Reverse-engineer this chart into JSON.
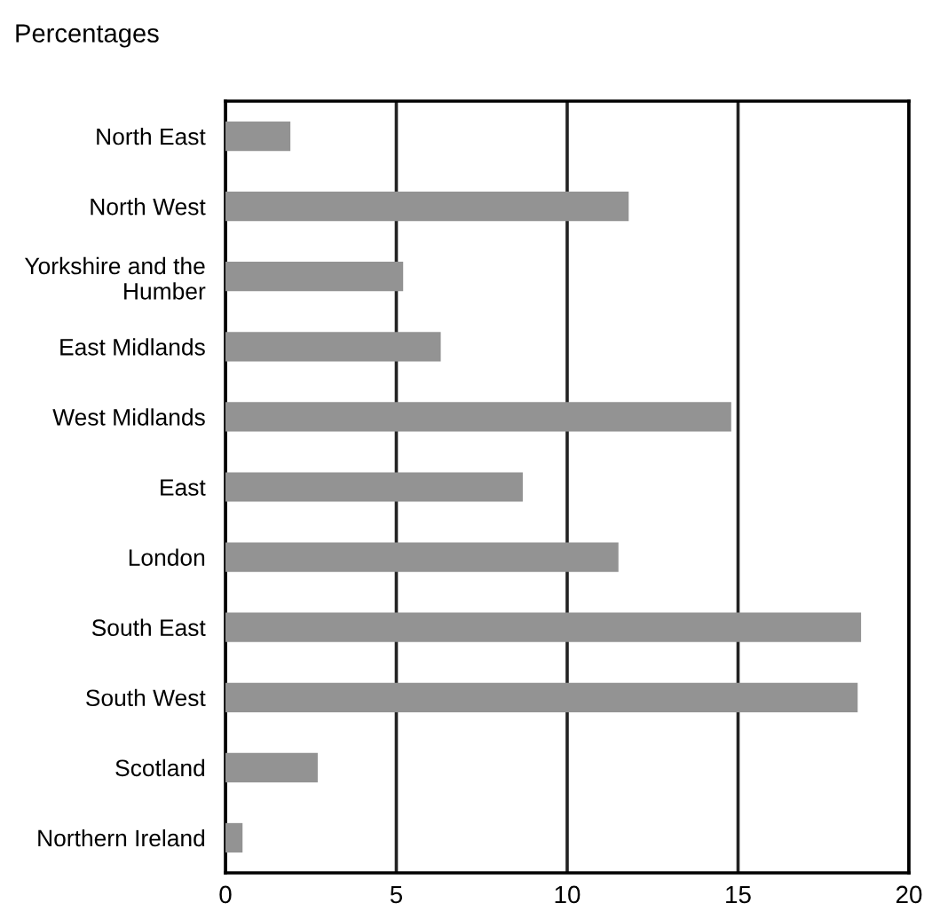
{
  "chart_data": {
    "type": "bar",
    "orientation": "horizontal",
    "title": "Percentages",
    "categories": [
      "North East",
      "North West",
      "Yorkshire and the\nHumber",
      "East Midlands",
      "West Midlands",
      "East",
      "London",
      "South East",
      "South West",
      "Scotland",
      "Northern Ireland"
    ],
    "values": [
      1.9,
      11.8,
      5.2,
      6.3,
      14.8,
      8.7,
      11.5,
      18.6,
      18.5,
      2.7,
      0.5
    ],
    "color": "#939393",
    "xlim": [
      0,
      20
    ],
    "xticks": [
      0,
      5,
      10,
      15,
      20
    ],
    "grid": "x"
  }
}
